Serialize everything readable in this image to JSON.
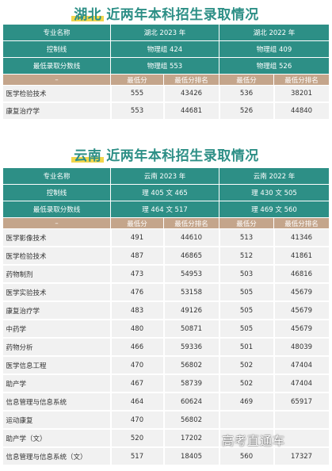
{
  "hubei": {
    "province": "湖北",
    "title_rest": "近两年本科招生录取情况",
    "header": {
      "c0": "专业名称",
      "y1": "湖北 2023 年",
      "y2": "湖北 2022 年",
      "control_label": "控制线",
      "control_1": "物理组 424",
      "control_2": "物理组 409",
      "min_label": "最低录取分数线",
      "min_1": "物理组 553",
      "min_2": "物理组 526"
    },
    "sub": {
      "dash": "–",
      "min": "最低分",
      "rank": "最低分排名"
    },
    "rows": [
      [
        "医学检验技术",
        "555",
        "43426",
        "536",
        "38201"
      ],
      [
        "康复治疗学",
        "553",
        "44681",
        "526",
        "44840"
      ]
    ]
  },
  "yunnan": {
    "province": "云南",
    "title_rest": "近两年本科招生录取情况",
    "header": {
      "c0": "专业名称",
      "y1": "云南 2023 年",
      "y2": "云南 2022 年",
      "control_label": "控制线",
      "control_1": "理 405 文 465",
      "control_2": "理 430 文 505",
      "min_label": "最低录取分数线",
      "min_1": "理 464 文 517",
      "min_2": "理 469 文 560"
    },
    "sub": {
      "dash": "–",
      "min": "最低分",
      "rank": "最低分排名"
    },
    "rows": [
      [
        "医学影像技术",
        "491",
        "44610",
        "513",
        "41346"
      ],
      [
        "医学检验技术",
        "487",
        "46865",
        "512",
        "41861"
      ],
      [
        "药物制剂",
        "473",
        "54953",
        "503",
        "46816"
      ],
      [
        "医学实验技术",
        "476",
        "53158",
        "505",
        "45679"
      ],
      [
        "康复治疗学",
        "483",
        "49126",
        "505",
        "45679"
      ],
      [
        "中药学",
        "480",
        "50871",
        "505",
        "45679"
      ],
      [
        "药物分析",
        "466",
        "59336",
        "501",
        "48039"
      ],
      [
        "医学信息工程",
        "470",
        "56802",
        "502",
        "47404"
      ],
      [
        "助产学",
        "467",
        "58739",
        "502",
        "47404"
      ],
      [
        "信息管理与信息系统",
        "464",
        "60624",
        "469",
        "65917"
      ],
      [
        "运动康复",
        "470",
        "56802",
        "",
        ""
      ],
      [
        "助产学（文）",
        "520",
        "17202",
        "",
        ""
      ],
      [
        "信息管理与信息系统（文）",
        "517",
        "18405",
        "560",
        "17327"
      ]
    ]
  },
  "watermark": "高考直通车"
}
